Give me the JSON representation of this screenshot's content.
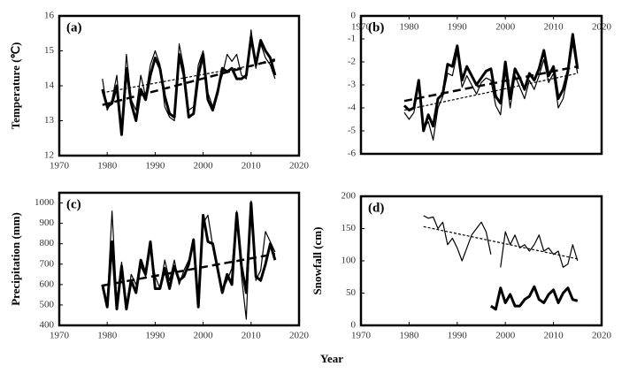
{
  "x_label": "Year",
  "chart_data": [
    {
      "type": "line",
      "label": "(a)",
      "ylabel": "Temperature (℃)",
      "xlim": [
        1970,
        2020
      ],
      "xticks": [
        1970,
        1980,
        1990,
        2000,
        2010,
        2020
      ],
      "xaxis_position": "bottom",
      "ylim": [
        12,
        16
      ],
      "yticks": [
        12,
        13,
        14,
        15,
        16
      ],
      "x": [
        1979,
        1980,
        1981,
        1982,
        1983,
        1984,
        1985,
        1986,
        1987,
        1988,
        1989,
        1990,
        1991,
        1992,
        1993,
        1994,
        1995,
        1996,
        1997,
        1998,
        1999,
        2000,
        2001,
        2002,
        2003,
        2004,
        2005,
        2006,
        2007,
        2008,
        2009,
        2010,
        2011,
        2012,
        2013,
        2014,
        2015
      ],
      "series": [
        {
          "color": "#000",
          "width": 3,
          "style": "solid",
          "values": [
            13.9,
            13.4,
            13.5,
            14.0,
            12.6,
            14.5,
            13.5,
            13.0,
            13.9,
            13.6,
            14.3,
            14.8,
            14.5,
            13.7,
            13.2,
            13.1,
            14.9,
            14.3,
            13.1,
            13.2,
            14.3,
            14.9,
            13.6,
            13.3,
            13.8,
            14.5,
            14.4,
            14.5,
            14.2,
            14.2,
            14.3,
            15.4,
            14.6,
            15.3,
            15.0,
            14.8,
            14.3
          ]
        },
        {
          "color": "#000",
          "width": 1.2,
          "style": "solid",
          "values": [
            14.2,
            13.3,
            13.6,
            14.3,
            12.7,
            14.9,
            13.6,
            13.3,
            14.3,
            13.7,
            14.6,
            15.0,
            14.6,
            13.4,
            13.1,
            13.0,
            15.2,
            14.5,
            13.3,
            13.4,
            14.6,
            15.0,
            13.8,
            13.4,
            13.9,
            14.3,
            14.9,
            14.7,
            14.9,
            14.3,
            14.2,
            15.6,
            14.5,
            15.2,
            14.8,
            14.6,
            14.2
          ]
        },
        {
          "color": "#000",
          "width": 2.5,
          "style": "dashed",
          "x": [
            1979,
            2015
          ],
          "values": [
            13.45,
            14.75
          ]
        },
        {
          "color": "#000",
          "width": 1.2,
          "style": "dashed",
          "x": [
            1979,
            2015
          ],
          "values": [
            13.8,
            14.7
          ]
        }
      ]
    },
    {
      "type": "line",
      "label": "(b)",
      "xlim": [
        1970,
        2020
      ],
      "xticks": [
        1970,
        1980,
        1990,
        2000,
        2010,
        2020
      ],
      "xaxis_position": "top",
      "ylim": [
        -6,
        0
      ],
      "yticks": [
        -6,
        -5,
        -4,
        -3,
        -2,
        -1,
        0
      ],
      "x": [
        1979,
        1980,
        1981,
        1982,
        1983,
        1984,
        1985,
        1986,
        1987,
        1988,
        1989,
        1990,
        1991,
        1992,
        1993,
        1994,
        1995,
        1996,
        1997,
        1998,
        1999,
        2000,
        2001,
        2002,
        2003,
        2004,
        2005,
        2006,
        2007,
        2008,
        2009,
        2010,
        2011,
        2012,
        2013,
        2014,
        2015
      ],
      "series": [
        {
          "color": "#000",
          "width": 3,
          "style": "solid",
          "values": [
            -3.9,
            -4.1,
            -4.0,
            -2.8,
            -5.0,
            -4.3,
            -4.8,
            -3.6,
            -3.4,
            -2.1,
            -2.2,
            -1.3,
            -2.8,
            -2.2,
            -2.6,
            -3.0,
            -2.7,
            -2.4,
            -2.3,
            -3.5,
            -3.8,
            -2.0,
            -3.6,
            -2.3,
            -2.7,
            -3.2,
            -2.5,
            -2.8,
            -2.3,
            -1.5,
            -2.6,
            -2.2,
            -3.6,
            -3.2,
            -2.4,
            -0.8,
            -2.3
          ]
        },
        {
          "color": "#000",
          "width": 1.2,
          "style": "solid",
          "values": [
            -4.2,
            -4.5,
            -4.2,
            -3.0,
            -4.9,
            -4.6,
            -5.4,
            -4.0,
            -3.5,
            -2.5,
            -2.6,
            -1.6,
            -3.1,
            -2.6,
            -3.0,
            -3.4,
            -2.9,
            -2.7,
            -2.8,
            -3.9,
            -4.3,
            -2.4,
            -4.0,
            -2.6,
            -3.1,
            -3.6,
            -2.8,
            -3.2,
            -2.6,
            -1.9,
            -2.9,
            -2.5,
            -4.0,
            -3.6,
            -2.6,
            -1.2,
            -2.5
          ]
        },
        {
          "color": "#000",
          "width": 2.5,
          "style": "dashed",
          "x": [
            1979,
            2015
          ],
          "values": [
            -3.7,
            -2.2
          ]
        },
        {
          "color": "#000",
          "width": 1.2,
          "style": "dashed",
          "x": [
            1979,
            2015
          ],
          "values": [
            -4.1,
            -2.5
          ]
        }
      ]
    },
    {
      "type": "line",
      "label": "(c)",
      "ylabel": "Precipitation (mm)",
      "xlim": [
        1970,
        2020
      ],
      "xticks": [
        1970,
        1980,
        1990,
        2000,
        2010,
        2020
      ],
      "xaxis_position": "bottom",
      "ylim": [
        400,
        1050
      ],
      "yticks": [
        400,
        500,
        600,
        700,
        800,
        900,
        1000
      ],
      "x": [
        1979,
        1980,
        1981,
        1982,
        1983,
        1984,
        1985,
        1986,
        1987,
        1988,
        1989,
        1990,
        1991,
        1992,
        1993,
        1994,
        1995,
        1996,
        1997,
        1998,
        1999,
        2000,
        2001,
        2002,
        2003,
        2004,
        2005,
        2006,
        2007,
        2008,
        2009,
        2010,
        2011,
        2012,
        2013,
        2014,
        2015
      ],
      "series": [
        {
          "color": "#000",
          "width": 3,
          "style": "solid",
          "values": [
            600,
            490,
            810,
            480,
            690,
            480,
            620,
            560,
            720,
            650,
            810,
            580,
            580,
            680,
            580,
            690,
            620,
            640,
            700,
            820,
            490,
            940,
            810,
            800,
            680,
            560,
            650,
            600,
            950,
            690,
            560,
            1000,
            640,
            620,
            700,
            800,
            720
          ]
        },
        {
          "color": "#000",
          "width": 1.2,
          "style": "solid",
          "values": [
            580,
            510,
            960,
            520,
            710,
            500,
            650,
            600,
            690,
            640,
            770,
            640,
            580,
            720,
            620,
            720,
            600,
            670,
            720,
            790,
            520,
            900,
            940,
            790,
            700,
            570,
            620,
            680,
            960,
            640,
            430,
            1010,
            620,
            670,
            860,
            810,
            760
          ]
        },
        {
          "color": "#000",
          "width": 2.5,
          "style": "dashed",
          "x": [
            1979,
            2015
          ],
          "values": [
            595,
            750
          ]
        }
      ]
    },
    {
      "type": "line",
      "label": "(d)",
      "ylabel": "Snowfall (cm)",
      "xlim": [
        1970,
        2020
      ],
      "xticks": [
        1970,
        1980,
        1990,
        2000,
        2010,
        2020
      ],
      "xaxis_position": "bottom",
      "ylim": [
        0,
        200
      ],
      "yticks": [
        0,
        50,
        100,
        150,
        200
      ],
      "x": [
        1979,
        1980,
        1981,
        1982,
        1983,
        1984,
        1985,
        1986,
        1987,
        1988,
        1989,
        1990,
        1991,
        1992,
        1993,
        1994,
        1995,
        1996,
        1997,
        1998,
        1999,
        2000,
        2001,
        2002,
        2003,
        2004,
        2005,
        2006,
        2007,
        2008,
        2009,
        2010,
        2011,
        2012,
        2013,
        2014,
        2015
      ],
      "series": [
        {
          "color": "#000",
          "width": 3,
          "style": "solid",
          "values": [
            null,
            null,
            null,
            null,
            null,
            null,
            null,
            null,
            null,
            null,
            null,
            null,
            null,
            null,
            null,
            null,
            null,
            null,
            30,
            25,
            58,
            35,
            48,
            30,
            30,
            40,
            45,
            60,
            40,
            35,
            48,
            55,
            35,
            50,
            58,
            40,
            38
          ]
        },
        {
          "color": "#000",
          "width": 1.2,
          "style": "solid",
          "values": [
            null,
            null,
            null,
            null,
            170,
            166,
            168,
            150,
            160,
            125,
            135,
            120,
            100,
            120,
            140,
            150,
            160,
            145,
            110,
            null,
            90,
            145,
            125,
            140,
            120,
            125,
            115,
            125,
            140,
            115,
            120,
            110,
            115,
            90,
            95,
            125,
            100
          ]
        },
        {
          "color": "#000",
          "width": 1.2,
          "style": "dashed",
          "x": [
            1983,
            2015
          ],
          "values": [
            153,
            103
          ]
        }
      ]
    }
  ]
}
